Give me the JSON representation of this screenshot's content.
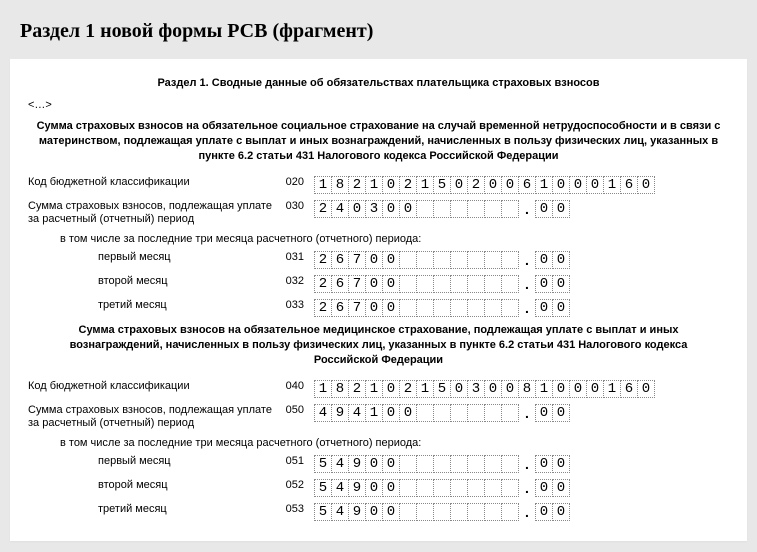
{
  "pageTitle": "Раздел 1 новой формы РСВ (фрагмент)",
  "sectionTitle": "Раздел 1. Сводные данные об обязательствах плательщика страховых взносов",
  "ellipsis": "<…>",
  "blockA": {
    "heading": "Сумма страховых взносов на обязательное социальное страхование на случай временной нетрудоспособности и в связи с материнством, подлежащая уплате с выплат и иных вознаграждений, начисленных в пользу физических лиц, указанных в пункте 6.2 статьи 431 Налогового кодекса Российской Федерации",
    "rows": [
      {
        "label": "Код бюджетной классификации",
        "code": "020",
        "type": "kbk",
        "cells": [
          "1",
          "8",
          "2",
          "1",
          "0",
          "2",
          "1",
          "5",
          "0",
          "2",
          "0",
          "0",
          "6",
          "1",
          "0",
          "0",
          "0",
          "1",
          "6",
          "0"
        ]
      },
      {
        "label": "Сумма страховых взносов, подлежащая уплате за расчетный (отчетный) период",
        "code": "030",
        "type": "sum",
        "int": [
          "2",
          "4",
          "0",
          "3",
          "0",
          "0",
          "",
          "",
          "",
          "",
          "",
          ""
        ],
        "frac": [
          "0",
          "0"
        ]
      }
    ],
    "subnote": "в том числе за последние три месяца расчетного (отчетного) периода:",
    "months": [
      {
        "label": "первый месяц",
        "code": "031",
        "int": [
          "2",
          "6",
          "7",
          "0",
          "0",
          "",
          "",
          "",
          "",
          "",
          "",
          ""
        ],
        "frac": [
          "0",
          "0"
        ]
      },
      {
        "label": "второй месяц",
        "code": "032",
        "int": [
          "2",
          "6",
          "7",
          "0",
          "0",
          "",
          "",
          "",
          "",
          "",
          "",
          ""
        ],
        "frac": [
          "0",
          "0"
        ]
      },
      {
        "label": "третий месяц",
        "code": "033",
        "int": [
          "2",
          "6",
          "7",
          "0",
          "0",
          "",
          "",
          "",
          "",
          "",
          "",
          ""
        ],
        "frac": [
          "0",
          "0"
        ]
      }
    ]
  },
  "blockB": {
    "heading": "Сумма страховых взносов на обязательное медицинское страхование, подлежащая уплате с выплат и иных вознаграждений, начисленных в пользу физических лиц, указанных в пункте 6.2 статьи 431 Налогового кодекса Российской Федерации",
    "rows": [
      {
        "label": "Код бюджетной классификации",
        "code": "040",
        "type": "kbk",
        "cells": [
          "1",
          "8",
          "2",
          "1",
          "0",
          "2",
          "1",
          "5",
          "0",
          "3",
          "0",
          "0",
          "8",
          "1",
          "0",
          "0",
          "0",
          "1",
          "6",
          "0"
        ]
      },
      {
        "label": "Сумма страховых взносов, подлежащая уплате за расчетный (отчетный) период",
        "code": "050",
        "type": "sum",
        "int": [
          "4",
          "9",
          "4",
          "1",
          "0",
          "0",
          "",
          "",
          "",
          "",
          "",
          ""
        ],
        "frac": [
          "0",
          "0"
        ]
      }
    ],
    "subnote": "в том числе за последние три месяца расчетного (отчетного) периода:",
    "months": [
      {
        "label": "первый месяц",
        "code": "051",
        "int": [
          "5",
          "4",
          "9",
          "0",
          "0",
          "",
          "",
          "",
          "",
          "",
          "",
          ""
        ],
        "frac": [
          "0",
          "0"
        ]
      },
      {
        "label": "второй месяц",
        "code": "052",
        "int": [
          "5",
          "4",
          "9",
          "0",
          "0",
          "",
          "",
          "",
          "",
          "",
          "",
          ""
        ],
        "frac": [
          "0",
          "0"
        ]
      },
      {
        "label": "третий месяц",
        "code": "053",
        "int": [
          "5",
          "4",
          "9",
          "0",
          "0",
          "",
          "",
          "",
          "",
          "",
          "",
          ""
        ],
        "frac": [
          "0",
          "0"
        ]
      }
    ]
  }
}
